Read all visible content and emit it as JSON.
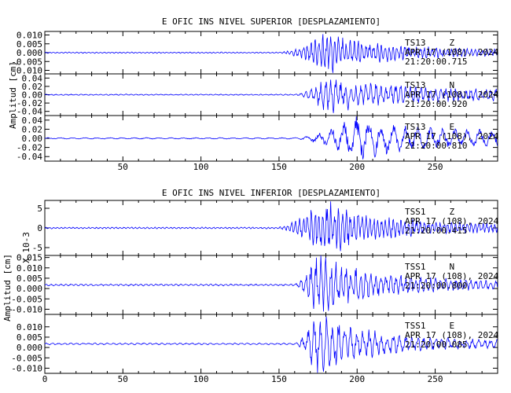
{
  "panels": [
    {
      "title": "E OFIC INS NIVEL SUPERIOR [DESPLAZAMIENTO]",
      "ylabel": "Amplitud [cm]",
      "multiplier": "",
      "xticks": [
        "50",
        "100",
        "150",
        "200",
        "250"
      ]
    },
    {
      "title": "E OFIC INS NIVEL INFERIOR [DESPLAZAMIENTO]",
      "ylabel": "Amplitud [cm]",
      "multiplier": "X 10-3",
      "xticks": [
        "0",
        "50",
        "100",
        "150",
        "200",
        "250"
      ]
    }
  ],
  "chart_data": [
    {
      "type": "line",
      "title": "E OFIC INS NIVEL SUPERIOR [DESPLAZAMIENTO]",
      "xlabel": "",
      "ylabel": "Amplitud [cm]",
      "xlim": [
        0,
        290
      ],
      "series": [
        {
          "name": "TS13 Z",
          "station": "TS13",
          "component": "Z",
          "date": "APR 17 (108), 2024",
          "time": "21:20:00.715",
          "ylim": [
            -0.012,
            0.012
          ],
          "yticks": [
            "0.010",
            "0.005",
            "0.000",
            "-0.005",
            "-0.010"
          ],
          "onset": 150,
          "peak_time": 181,
          "peak_amplitude": 0.011,
          "end_amplitude": 0.0015
        },
        {
          "name": "TS13 N",
          "station": "TS13",
          "component": "N",
          "date": "APR 17 (108), 2024",
          "time": "21:20:00.920",
          "ylim": [
            -0.05,
            0.05
          ],
          "yticks": [
            "0.04",
            "0.02",
            "0.00",
            "-0.02",
            "-0.04"
          ],
          "onset": 160,
          "peak_time": 182,
          "peak_amplitude": 0.042,
          "end_amplitude": 0.012
        },
        {
          "name": "TS13 E",
          "station": "TS13",
          "component": "E",
          "date": "APR 17 (108), 2024",
          "time": "21:20:00.810",
          "ylim": [
            -0.05,
            0.05
          ],
          "yticks": [
            "0.04",
            "0.02",
            "0.00",
            "-0.02",
            "-0.04"
          ],
          "onset": 160,
          "peak_time": 200,
          "peak_amplitude": 0.044,
          "end_amplitude": 0.015
        }
      ]
    },
    {
      "type": "line",
      "title": "E OFIC INS NIVEL INFERIOR [DESPLAZAMIENTO]",
      "xlabel": "",
      "ylabel": "Amplitud [cm]",
      "xlim": [
        0,
        290
      ],
      "series": [
        {
          "name": "TSS1 Z",
          "station": "TSS1",
          "component": "Z",
          "date": "APR 17 (108), 2024",
          "time": "21:20:00.415",
          "ylim": [
            -7,
            7
          ],
          "yticks": [
            "5",
            "0",
            "-5"
          ],
          "units_note": "X 10-3",
          "onset": 148,
          "peak_time": 178,
          "peak_amplitude": 6.5,
          "end_amplitude": 0.8
        },
        {
          "name": "TSS1 N",
          "station": "TSS1",
          "component": "N",
          "date": "APR 17 (108), 2024",
          "time": "21:20:00.800",
          "ylim": [
            -0.0125,
            0.016
          ],
          "yticks": [
            "0.015",
            "0.010",
            "0.005",
            "0.000",
            "-0.005",
            "-0.010"
          ],
          "onset": 160,
          "peak_time": 174,
          "peak_amplitude": 0.014,
          "end_amplitude": 0.0015
        },
        {
          "name": "TSS1 E",
          "station": "TSS1",
          "component": "E",
          "date": "APR 17 (108), 2024",
          "time": "21:20:00.085",
          "ylim": [
            -0.0125,
            0.016
          ],
          "yticks": [
            "0.010",
            "0.005",
            "0.000",
            "-0.005",
            "-0.010"
          ],
          "onset": 160,
          "peak_time": 174,
          "peak_amplitude": 0.013,
          "end_amplitude": 0.0015
        }
      ]
    }
  ],
  "colors": {
    "trace": "#0000ff",
    "axes": "#000000",
    "background": "#ffffff"
  }
}
